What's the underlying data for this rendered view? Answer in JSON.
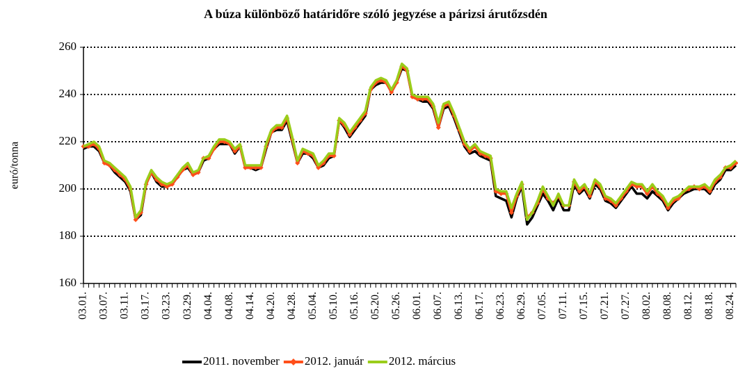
{
  "chart_data": {
    "type": "line",
    "title": "A búza különböző határidőre szóló jegyzése a párizsi árutőzsdén",
    "y_label": "euró/tonna",
    "categories": [
      "03.01.",
      null,
      null,
      null,
      "03.07.",
      null,
      null,
      null,
      "03.11.",
      null,
      null,
      null,
      "03.17.",
      null,
      null,
      null,
      "03.23.",
      null,
      null,
      null,
      "03.29.",
      null,
      null,
      null,
      "04.04.",
      null,
      null,
      null,
      "04.08.",
      null,
      null,
      null,
      "04.14.",
      null,
      null,
      null,
      "04.20.",
      null,
      null,
      null,
      "04.28.",
      null,
      null,
      null,
      "05.04.",
      null,
      null,
      null,
      "05.10.",
      null,
      null,
      null,
      "05.16.",
      null,
      null,
      null,
      "05.20.",
      null,
      null,
      null,
      "05.26.",
      null,
      null,
      null,
      "06.01.",
      null,
      null,
      null,
      "06.07.",
      null,
      null,
      null,
      "06.13.",
      null,
      null,
      null,
      "06.17.",
      null,
      null,
      null,
      "06.23.",
      null,
      null,
      null,
      "06.29.",
      null,
      null,
      null,
      "07.05.",
      null,
      null,
      null,
      "07.11.",
      null,
      null,
      null,
      "07.15.",
      null,
      null,
      null,
      "07.21.",
      null,
      null,
      null,
      "07.27.",
      null,
      null,
      null,
      "08.02.",
      null,
      null,
      null,
      "08.08.",
      null,
      null,
      null,
      "08.12.",
      null,
      null,
      null,
      "08.18.",
      null,
      null,
      null,
      "08.24.",
      null
    ],
    "series": [
      {
        "name": "2011. november",
        "color": "#000000",
        "values": [
          217,
          218,
          218,
          216,
          211,
          210,
          207,
          205,
          203,
          199,
          187,
          189,
          202,
          207,
          203,
          201,
          201,
          202,
          205,
          208,
          209,
          206,
          207,
          212,
          213,
          217,
          219,
          219,
          219,
          215,
          218,
          209,
          209,
          208,
          209,
          217,
          224,
          225,
          225,
          229,
          220,
          211,
          215,
          215,
          213,
          209,
          210,
          213,
          214,
          229,
          226,
          222,
          225,
          228,
          231,
          242,
          244,
          245,
          245,
          241,
          245,
          251,
          250,
          239,
          238,
          237,
          237,
          234,
          226,
          234,
          235,
          230,
          224,
          218,
          215,
          216,
          214,
          213,
          212,
          197,
          196,
          195,
          188,
          196,
          201,
          185,
          188,
          193,
          198,
          195,
          191,
          196,
          191,
          191,
          202,
          198,
          200,
          196,
          202,
          200,
          195,
          194,
          192,
          195,
          198,
          201,
          198,
          198,
          196,
          199,
          197,
          195,
          191,
          194,
          196,
          198,
          199,
          200,
          200,
          200,
          198,
          202,
          204,
          208,
          208,
          210
        ]
      },
      {
        "name": "2012. január",
        "color": "#ff4f1a",
        "marker": "diamond",
        "values": [
          218,
          218,
          219,
          217,
          211,
          210,
          208,
          206,
          204,
          200,
          187,
          190,
          202,
          207,
          204,
          202,
          201,
          202,
          205,
          208,
          210,
          206,
          207,
          213,
          213,
          217,
          220,
          220,
          219,
          216,
          218,
          209,
          209,
          209,
          209,
          218,
          224,
          226,
          226,
          230,
          221,
          211,
          216,
          215,
          214,
          209,
          211,
          214,
          214,
          229,
          227,
          223,
          226,
          229,
          232,
          242,
          245,
          246,
          245,
          241,
          245,
          252,
          250,
          239,
          238,
          238,
          238,
          235,
          226,
          235,
          236,
          231,
          225,
          219,
          216,
          218,
          215,
          214,
          213,
          199,
          198,
          198,
          190,
          197,
          202,
          188,
          190,
          194,
          200,
          196,
          194,
          197,
          193,
          193,
          203,
          199,
          201,
          197,
          203,
          201,
          196,
          195,
          193,
          196,
          199,
          202,
          201,
          201,
          198,
          201,
          198,
          196,
          192,
          195,
          196,
          199,
          200,
          201,
          200,
          201,
          199,
          203,
          205,
          209,
          209,
          211
        ]
      },
      {
        "name": "2012. március",
        "color": "#9acd1a",
        "values": [
          218,
          219,
          220,
          218,
          212,
          211,
          209,
          207,
          205,
          201,
          188,
          191,
          203,
          208,
          205,
          203,
          202,
          203,
          206,
          209,
          211,
          207,
          208,
          213,
          214,
          218,
          221,
          221,
          220,
          217,
          219,
          210,
          210,
          210,
          210,
          219,
          225,
          227,
          227,
          231,
          222,
          212,
          217,
          216,
          215,
          210,
          212,
          215,
          215,
          230,
          228,
          224,
          227,
          230,
          233,
          243,
          246,
          247,
          246,
          242,
          246,
          253,
          251,
          240,
          239,
          239,
          239,
          236,
          228,
          236,
          237,
          232,
          226,
          220,
          217,
          219,
          216,
          215,
          214,
          200,
          199,
          199,
          192,
          198,
          203,
          187,
          190,
          195,
          201,
          197,
          193,
          198,
          193,
          193,
          204,
          200,
          202,
          198,
          204,
          202,
          197,
          196,
          194,
          197,
          200,
          203,
          202,
          202,
          199,
          202,
          199,
          197,
          193,
          196,
          197,
          199,
          201,
          201,
          201,
          202,
          200,
          204,
          206,
          209,
          210,
          212
        ]
      }
    ],
    "ylim": [
      160,
      260
    ],
    "yticks": [
      160,
      180,
      200,
      220,
      240,
      260
    ],
    "grid": true,
    "legend": "bottom"
  }
}
